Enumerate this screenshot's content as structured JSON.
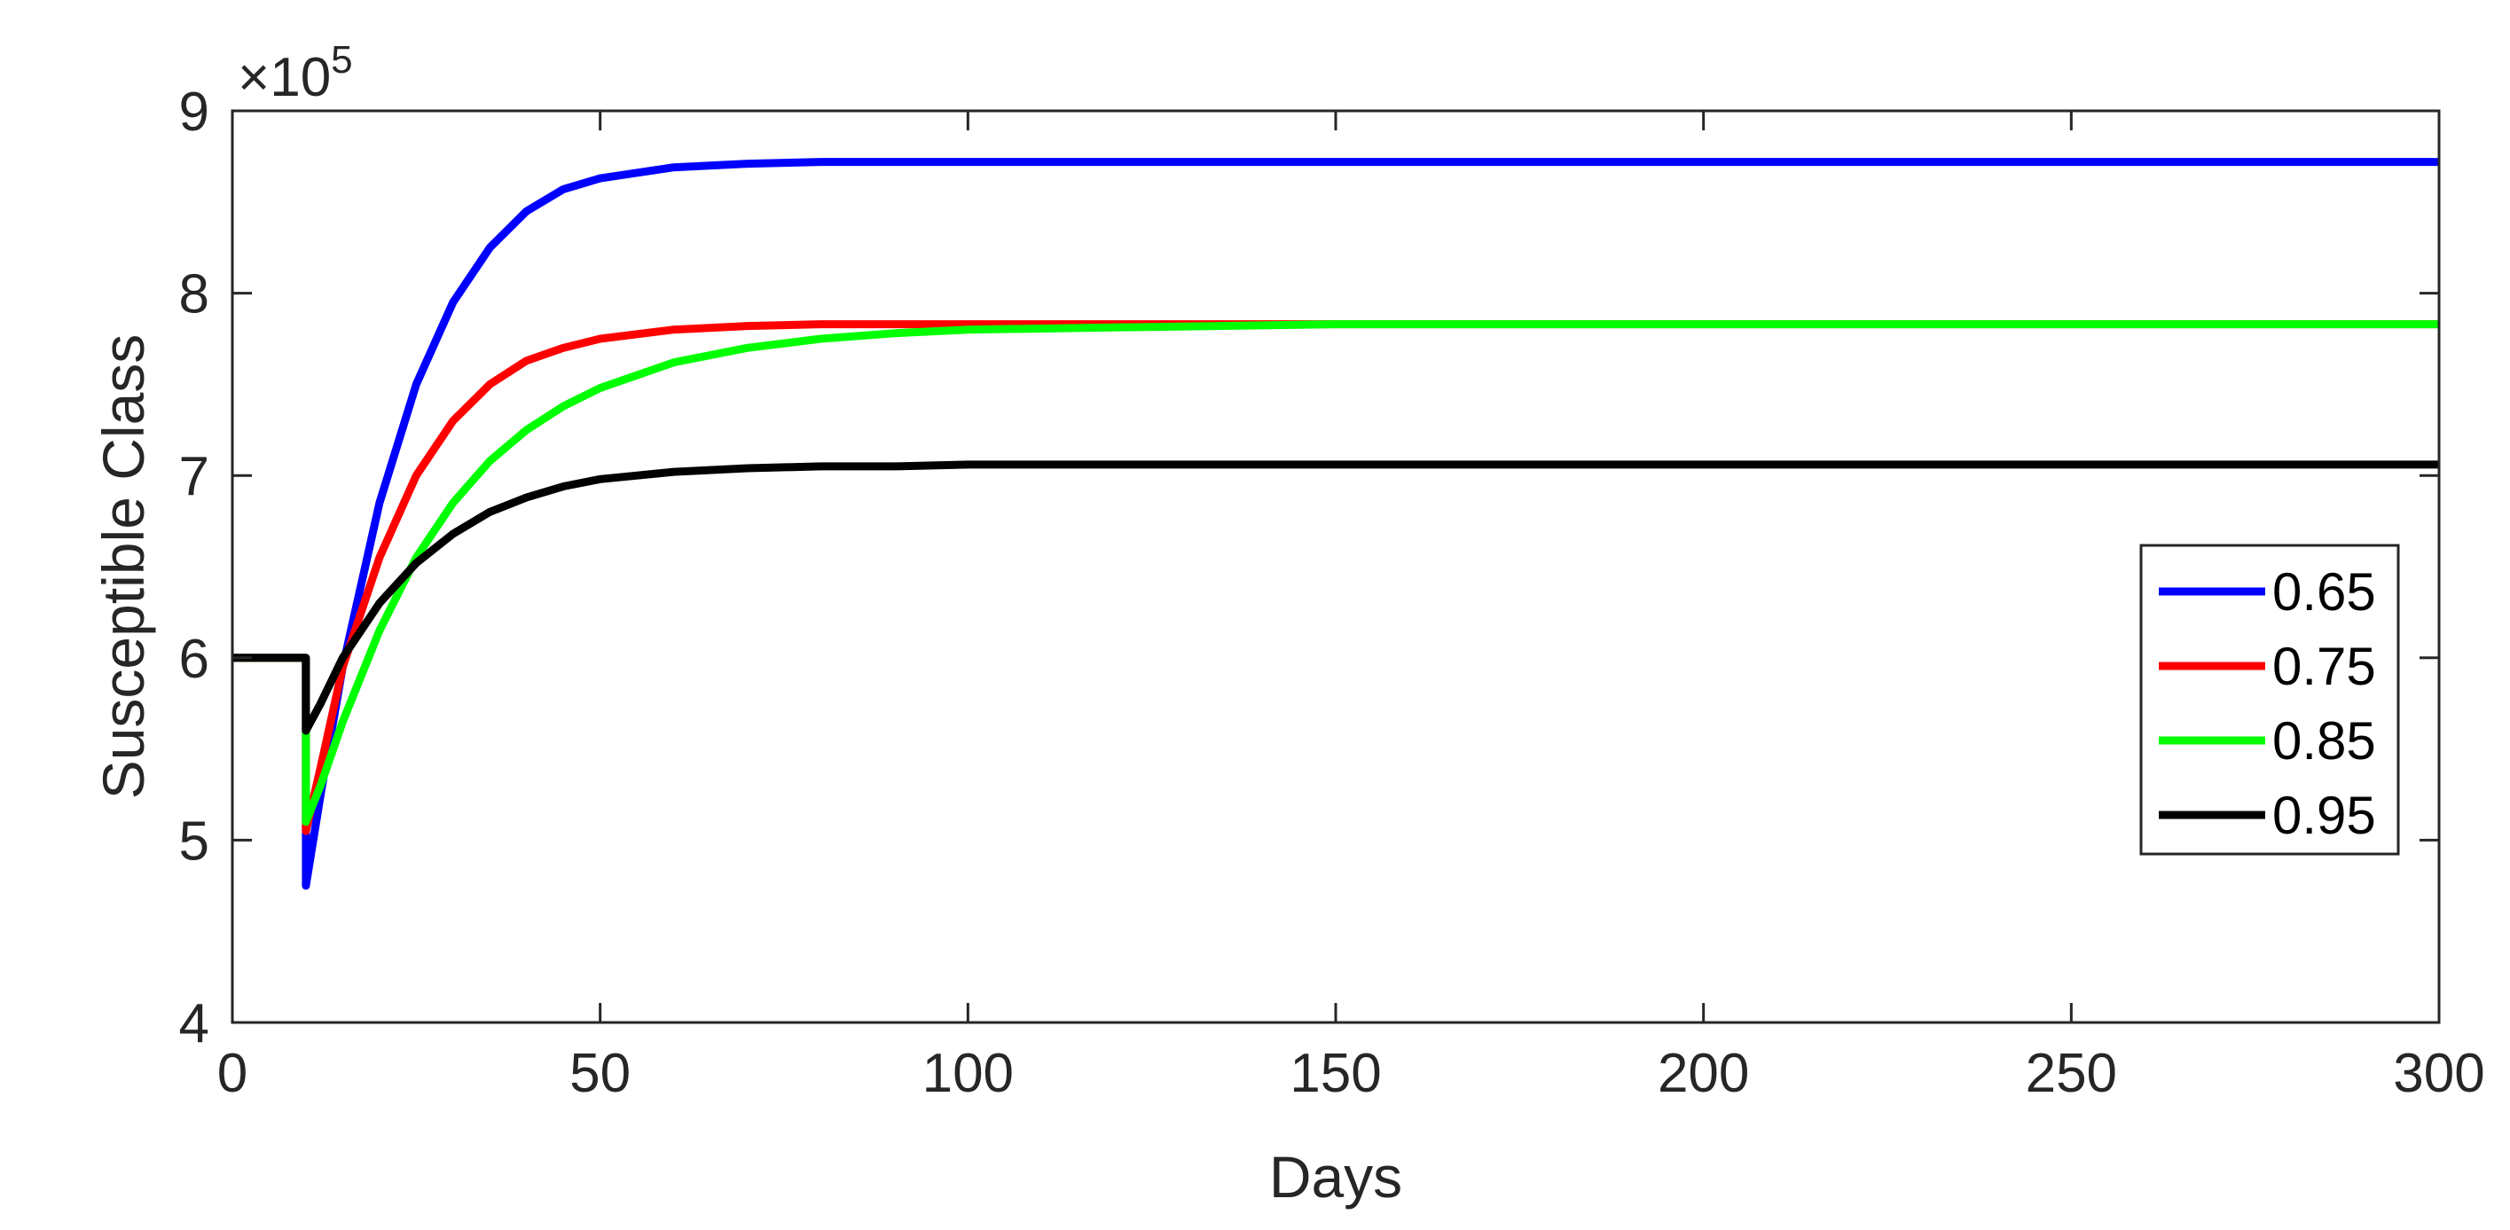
{
  "chart_data": {
    "type": "line",
    "title": "",
    "xlabel": "Days",
    "ylabel": "Susceptible Class",
    "y_exponent_label": "×10",
    "y_exponent_power": "5",
    "xlim": [
      0,
      300
    ],
    "ylim": [
      4,
      9
    ],
    "x_ticks": [
      0,
      50,
      100,
      150,
      200,
      250,
      300
    ],
    "y_ticks": [
      4,
      5,
      6,
      7,
      8,
      9
    ],
    "x_tick_labels": [
      "0",
      "50",
      "100",
      "150",
      "200",
      "250",
      "300"
    ],
    "y_tick_labels": [
      "4",
      "5",
      "6",
      "7",
      "8",
      "9"
    ],
    "grid": false,
    "legend_position": "right",
    "series": [
      {
        "name": "0.65",
        "color": "#0000ff",
        "x": [
          0,
          10,
          10,
          12,
          15,
          20,
          25,
          30,
          35,
          40,
          45,
          50,
          60,
          70,
          80,
          90,
          100,
          150,
          200,
          250,
          300
        ],
        "y": [
          6.0,
          6.0,
          4.75,
          5.25,
          5.95,
          6.85,
          7.5,
          7.95,
          8.25,
          8.45,
          8.57,
          8.63,
          8.69,
          8.71,
          8.72,
          8.72,
          8.72,
          8.72,
          8.72,
          8.72,
          8.72
        ]
      },
      {
        "name": "0.75",
        "color": "#ff0000",
        "x": [
          0,
          10,
          10,
          12,
          15,
          20,
          25,
          30,
          35,
          40,
          45,
          50,
          60,
          70,
          80,
          90,
          100,
          150,
          200,
          250,
          300
        ],
        "y": [
          6.0,
          6.0,
          5.05,
          5.4,
          5.95,
          6.55,
          7.0,
          7.3,
          7.5,
          7.63,
          7.7,
          7.75,
          7.8,
          7.82,
          7.83,
          7.83,
          7.83,
          7.83,
          7.83,
          7.83,
          7.83
        ]
      },
      {
        "name": "0.85",
        "color": "#00ff00",
        "x": [
          0,
          10,
          10,
          12,
          15,
          20,
          25,
          30,
          35,
          40,
          45,
          50,
          60,
          70,
          80,
          90,
          100,
          150,
          200,
          250,
          300
        ],
        "y": [
          6.0,
          6.0,
          5.1,
          5.3,
          5.65,
          6.15,
          6.55,
          6.85,
          7.08,
          7.25,
          7.38,
          7.48,
          7.62,
          7.7,
          7.75,
          7.78,
          7.8,
          7.83,
          7.83,
          7.83,
          7.83
        ]
      },
      {
        "name": "0.95",
        "color": "#000000",
        "x": [
          0,
          10,
          10,
          12,
          15,
          20,
          25,
          30,
          35,
          40,
          45,
          50,
          60,
          70,
          80,
          90,
          100,
          150,
          200,
          250,
          300
        ],
        "y": [
          6.0,
          6.0,
          5.6,
          5.75,
          6.0,
          6.3,
          6.52,
          6.68,
          6.8,
          6.88,
          6.94,
          6.98,
          7.02,
          7.04,
          7.05,
          7.05,
          7.06,
          7.06,
          7.06,
          7.06,
          7.06
        ]
      }
    ]
  }
}
